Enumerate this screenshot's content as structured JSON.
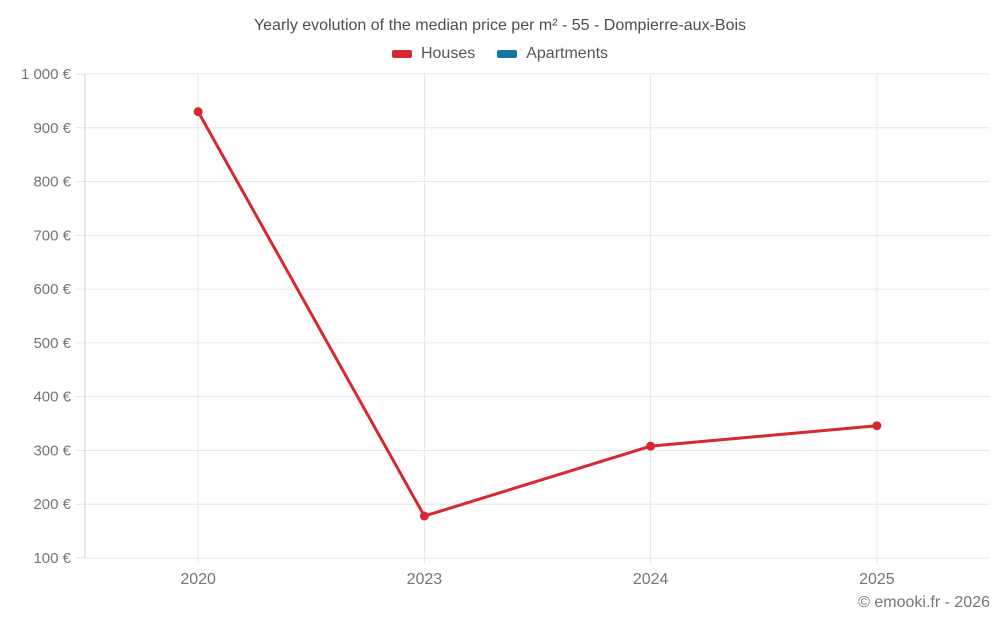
{
  "title": "Yearly evolution of the median price per m² - 55 - Dompierre-aux-Bois",
  "copyright": "© emooki.fr - 2026",
  "legend": {
    "items": [
      {
        "label": "Houses",
        "color": "#d7282f"
      },
      {
        "label": "Apartments",
        "color": "#1474a4"
      }
    ]
  },
  "colors": {
    "houses": "#d7282f",
    "apartments": "#1474a4",
    "gridline": "#e6e6e6",
    "axis_line": "#cfcfcf",
    "title_text": "#4d4d4d",
    "axis_text": "#757575"
  },
  "chart_data": {
    "type": "line",
    "categories": [
      "2020",
      "2023",
      "2024",
      "2025"
    ],
    "series": [
      {
        "name": "Houses",
        "color": "#d7282f",
        "values": [
          930,
          178,
          308,
          346
        ]
      },
      {
        "name": "Apartments",
        "color": "#1474a4",
        "values": []
      }
    ],
    "title": "Yearly evolution of the median price per m² - 55 - Dompierre-aux-Bois",
    "xlabel": "",
    "ylabel": "",
    "ylim": [
      100,
      1000
    ],
    "ytick_step": 100,
    "ytick_suffix": " €",
    "grid": true,
    "legend_position": "top"
  }
}
